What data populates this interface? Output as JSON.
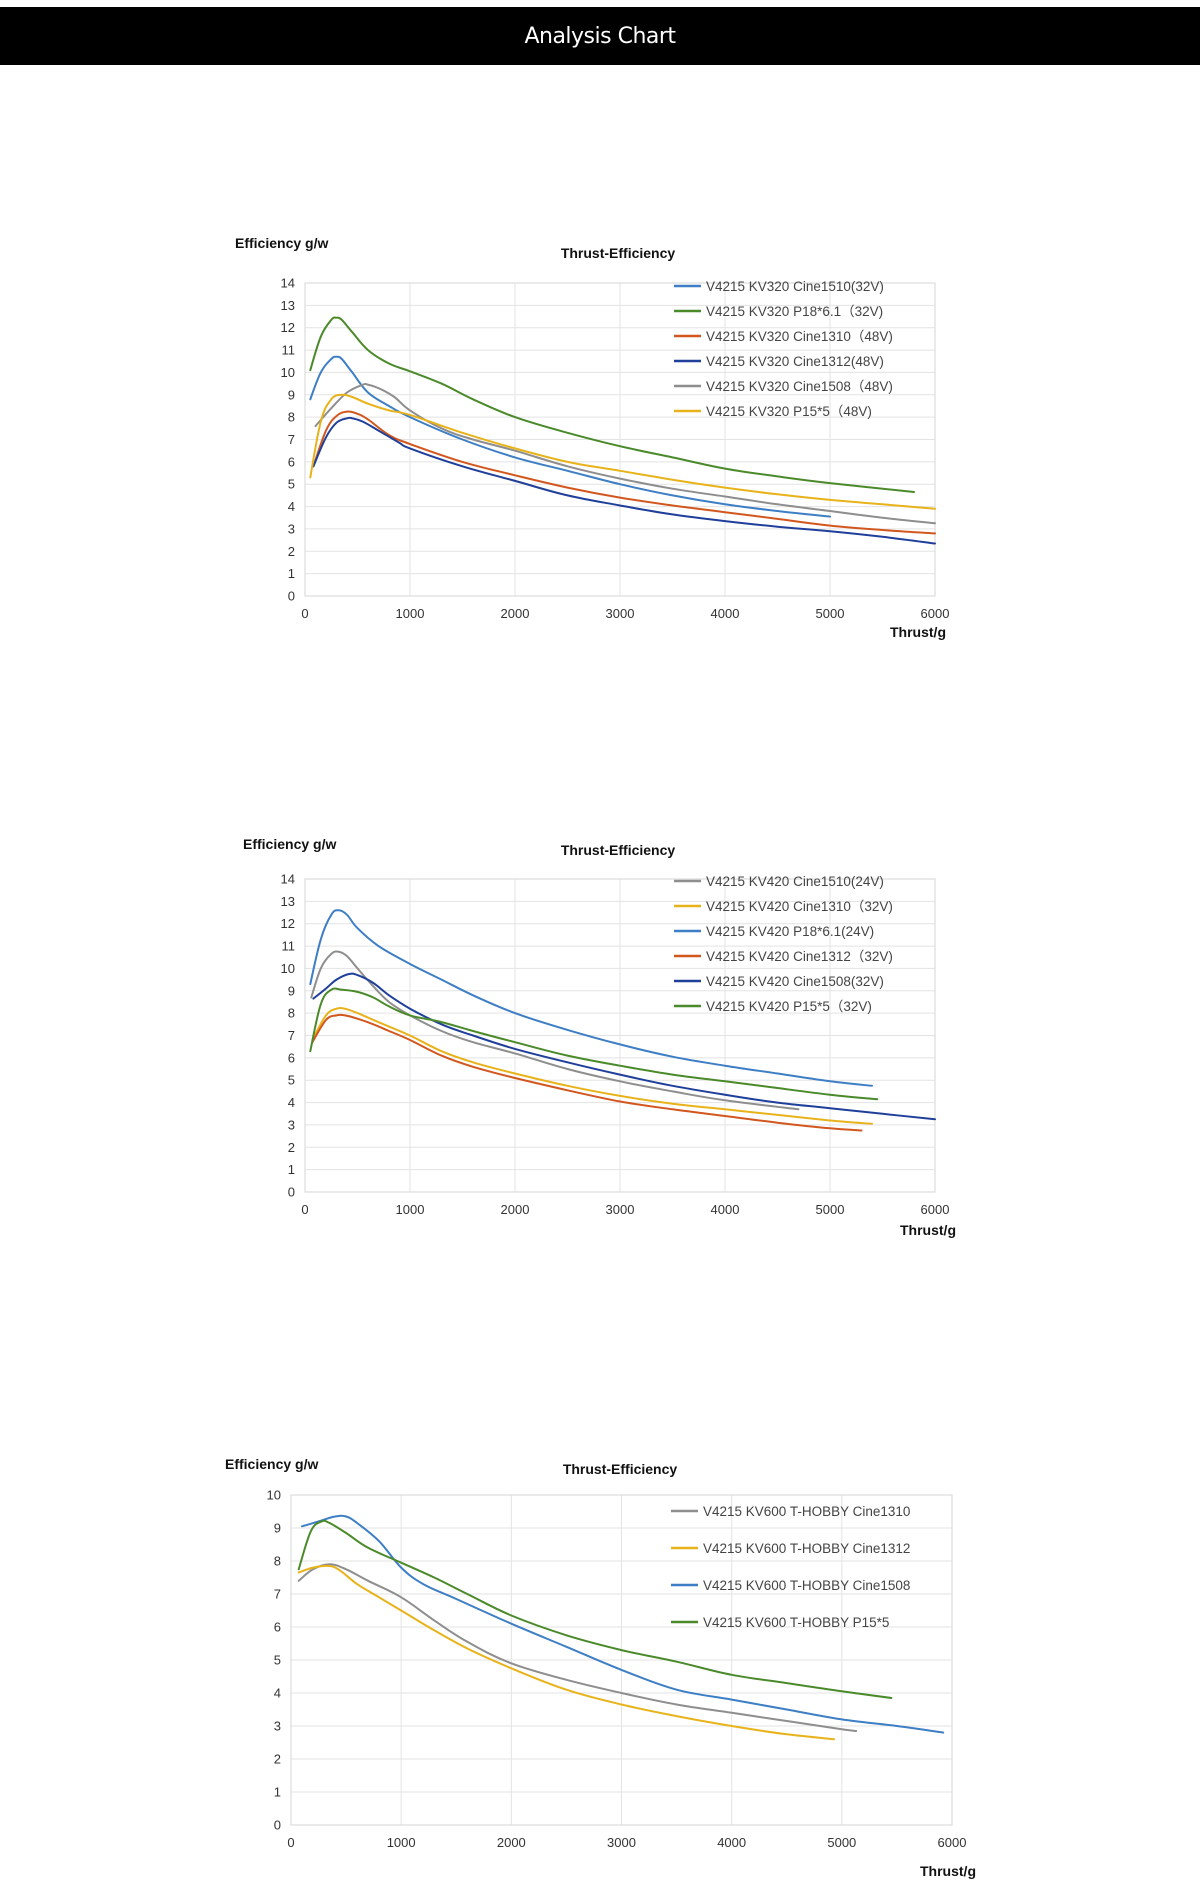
{
  "header": {
    "title": "Analysis Chart"
  },
  "colors": {
    "blue": "#3d7ec4",
    "green": "#4a8a2a",
    "orange": "#d2571e",
    "navy": "#1f3f9a",
    "gray": "#8e8e8e",
    "yellow": "#e8b31a"
  },
  "chart_data": [
    {
      "type": "line",
      "title": "Thrust-Efficiency",
      "xlabel": "Thrust/g",
      "ylabel": "Efficiency g/w",
      "xlim": [
        0,
        6000
      ],
      "ylim": [
        0,
        14
      ],
      "xticks": [
        "0",
        "1000",
        "2000",
        "3000",
        "4000",
        "5000",
        "6000"
      ],
      "yticks": [
        "0",
        "1",
        "2",
        "3",
        "4",
        "5",
        "6",
        "7",
        "8",
        "9",
        "10",
        "11",
        "12",
        "13",
        "14"
      ],
      "grid": true,
      "legend_position": "top-right",
      "series": [
        {
          "name": "V4215 KV320 Cine1510(32V)",
          "color_key": "blue",
          "x": [
            50,
            150,
            250,
            300,
            350,
            450,
            600,
            800,
            1000,
            1500,
            2000,
            2500,
            3000,
            3500,
            4000,
            4500,
            5000
          ],
          "y": [
            8.8,
            10.0,
            10.6,
            10.7,
            10.6,
            10.0,
            9.1,
            8.5,
            8.0,
            7.0,
            6.2,
            5.6,
            5.0,
            4.5,
            4.1,
            3.8,
            3.55
          ]
        },
        {
          "name": "V4215 KV320 P18*6.1（32V)",
          "color_key": "green",
          "x": [
            50,
            150,
            250,
            300,
            350,
            450,
            600,
            800,
            1000,
            1300,
            1600,
            2000,
            2500,
            3000,
            3500,
            4000,
            4500,
            5000,
            5800
          ],
          "y": [
            10.1,
            11.6,
            12.35,
            12.45,
            12.35,
            11.8,
            11.0,
            10.4,
            10.05,
            9.5,
            8.8,
            8.0,
            7.3,
            6.7,
            6.2,
            5.7,
            5.35,
            5.05,
            4.65
          ]
        },
        {
          "name": "V4215 KV320 Cine1310（48V)",
          "color_key": "orange",
          "x": [
            80,
            200,
            300,
            400,
            500,
            600,
            800,
            1000,
            1500,
            2000,
            2500,
            3000,
            3500,
            4000,
            4500,
            5000,
            5500,
            6000
          ],
          "y": [
            5.8,
            7.4,
            8.05,
            8.25,
            8.15,
            7.9,
            7.2,
            6.8,
            6.0,
            5.4,
            4.85,
            4.4,
            4.05,
            3.75,
            3.45,
            3.15,
            2.95,
            2.8
          ]
        },
        {
          "name": "V4215 KV320 Cine1312(48V)",
          "color_key": "navy",
          "x": [
            80,
            200,
            300,
            400,
            450,
            550,
            700,
            900,
            1000,
            1500,
            2000,
            2500,
            3000,
            3500,
            4000,
            4500,
            5000,
            5500,
            6000
          ],
          "y": [
            5.8,
            7.1,
            7.75,
            7.95,
            7.95,
            7.8,
            7.4,
            6.85,
            6.6,
            5.8,
            5.15,
            4.5,
            4.05,
            3.65,
            3.35,
            3.1,
            2.9,
            2.65,
            2.35
          ]
        },
        {
          "name": "V4215 KV320 Cine1508（48V)",
          "color_key": "gray",
          "x": [
            100,
            250,
            400,
            550,
            600,
            700,
            850,
            1000,
            1300,
            1600,
            2000,
            2500,
            3000,
            3500,
            4000,
            4500,
            5000,
            5500,
            6000
          ],
          "y": [
            7.6,
            8.4,
            9.1,
            9.45,
            9.45,
            9.3,
            8.9,
            8.3,
            7.5,
            7.0,
            6.5,
            5.8,
            5.25,
            4.8,
            4.45,
            4.1,
            3.8,
            3.5,
            3.25
          ]
        },
        {
          "name": "V4215 KV320 P15*5（48V)",
          "color_key": "yellow",
          "x": [
            50,
            150,
            250,
            350,
            450,
            600,
            800,
            1000,
            1500,
            2000,
            2500,
            3000,
            3500,
            4000,
            4500,
            5000,
            5500,
            6000
          ],
          "y": [
            5.3,
            7.8,
            8.8,
            9.0,
            8.9,
            8.6,
            8.3,
            8.1,
            7.3,
            6.6,
            6.0,
            5.6,
            5.2,
            4.85,
            4.55,
            4.3,
            4.1,
            3.9
          ]
        }
      ]
    },
    {
      "type": "line",
      "title": "Thrust-Efficiency",
      "xlabel": "Thrust/g",
      "ylabel": "Efficiency g/w",
      "xlim": [
        0,
        6000
      ],
      "ylim": [
        0,
        14
      ],
      "xticks": [
        "0",
        "1000",
        "2000",
        "3000",
        "4000",
        "5000",
        "6000"
      ],
      "yticks": [
        "0",
        "1",
        "2",
        "3",
        "4",
        "5",
        "6",
        "7",
        "8",
        "9",
        "10",
        "11",
        "12",
        "13",
        "14"
      ],
      "grid": true,
      "legend_position": "top-right",
      "series": [
        {
          "name": "V4215 KV420 Cine1510(24V)",
          "color_key": "gray",
          "x": [
            60,
            150,
            250,
            320,
            400,
            500,
            650,
            800,
            1000,
            1300,
            1600,
            2000,
            2500,
            3000,
            3500,
            4000,
            4700
          ],
          "y": [
            8.7,
            10.0,
            10.65,
            10.75,
            10.55,
            10.0,
            9.2,
            8.5,
            7.9,
            7.2,
            6.7,
            6.2,
            5.5,
            4.95,
            4.5,
            4.1,
            3.7
          ]
        },
        {
          "name": "V4215 KV420 Cine1310（32V)",
          "color_key": "yellow",
          "x": [
            70,
            200,
            300,
            380,
            500,
            650,
            800,
            1000,
            1300,
            1600,
            2000,
            2500,
            3000,
            3500,
            4000,
            4500,
            5000,
            5400
          ],
          "y": [
            6.8,
            7.9,
            8.2,
            8.2,
            8.0,
            7.7,
            7.4,
            7.0,
            6.3,
            5.8,
            5.3,
            4.75,
            4.3,
            3.95,
            3.7,
            3.45,
            3.2,
            3.05
          ]
        },
        {
          "name": "V4215 KV420 P18*6.1(24V)",
          "color_key": "blue",
          "x": [
            50,
            150,
            250,
            320,
            400,
            500,
            700,
            1000,
            1300,
            1600,
            2000,
            2500,
            3000,
            3500,
            4000,
            4500,
            5000,
            5400
          ],
          "y": [
            9.3,
            11.3,
            12.4,
            12.6,
            12.4,
            11.8,
            11.0,
            10.2,
            9.5,
            8.8,
            8.0,
            7.25,
            6.6,
            6.05,
            5.65,
            5.3,
            4.95,
            4.75
          ]
        },
        {
          "name": "V4215 KV420 Cine1312（32V)",
          "color_key": "orange",
          "x": [
            70,
            200,
            300,
            380,
            500,
            650,
            800,
            1000,
            1300,
            1600,
            2000,
            2500,
            3000,
            3500,
            4000,
            4500,
            5000,
            5300
          ],
          "y": [
            6.7,
            7.7,
            7.9,
            7.9,
            7.75,
            7.5,
            7.2,
            6.8,
            6.1,
            5.6,
            5.1,
            4.55,
            4.05,
            3.7,
            3.4,
            3.1,
            2.85,
            2.75
          ]
        },
        {
          "name": "V4215 KV420 Cine1508(32V)",
          "color_key": "navy",
          "x": [
            80,
            200,
            300,
            420,
            500,
            650,
            800,
            1000,
            1300,
            1600,
            2000,
            2500,
            3000,
            3500,
            4000,
            4500,
            5000,
            5500,
            6000
          ],
          "y": [
            8.65,
            9.1,
            9.5,
            9.75,
            9.7,
            9.35,
            8.8,
            8.2,
            7.5,
            7.0,
            6.4,
            5.8,
            5.25,
            4.75,
            4.35,
            4.0,
            3.75,
            3.5,
            3.25
          ]
        },
        {
          "name": "V4215 KV420 P15*5（32V)",
          "color_key": "green",
          "x": [
            50,
            150,
            250,
            350,
            500,
            650,
            800,
            1000,
            1300,
            1600,
            2000,
            2500,
            3000,
            3500,
            4000,
            4500,
            5000,
            5450
          ],
          "y": [
            6.3,
            8.4,
            9.05,
            9.05,
            8.95,
            8.7,
            8.3,
            7.9,
            7.6,
            7.2,
            6.7,
            6.1,
            5.65,
            5.25,
            4.95,
            4.65,
            4.35,
            4.15
          ]
        }
      ]
    },
    {
      "type": "line",
      "title": "Thrust-Efficiency",
      "xlabel": "Thrust/g",
      "ylabel": "Efficiency g/w",
      "xlim": [
        0,
        6000
      ],
      "ylim": [
        0,
        10
      ],
      "xticks": [
        "0",
        "1000",
        "2000",
        "3000",
        "4000",
        "5000",
        "6000"
      ],
      "yticks": [
        "0",
        "1",
        "2",
        "3",
        "4",
        "5",
        "6",
        "7",
        "8",
        "9",
        "10"
      ],
      "grid": true,
      "legend_position": "top-right",
      "series": [
        {
          "name": "V4215 KV600 T-HOBBY Cine1310",
          "color_key": "gray",
          "x": [
            70,
            200,
            350,
            500,
            700,
            1000,
            1300,
            1600,
            2000,
            2500,
            3000,
            3500,
            4000,
            4500,
            5000,
            5130
          ],
          "y": [
            7.4,
            7.75,
            7.9,
            7.75,
            7.4,
            6.9,
            6.2,
            5.55,
            4.9,
            4.4,
            4.0,
            3.65,
            3.4,
            3.15,
            2.9,
            2.85
          ]
        },
        {
          "name": "V4215 KV600 T-HOBBY Cine1312",
          "color_key": "yellow",
          "x": [
            70,
            200,
            350,
            450,
            600,
            800,
            1000,
            1300,
            1600,
            2000,
            2500,
            3000,
            3500,
            4000,
            4500,
            4930
          ],
          "y": [
            7.65,
            7.8,
            7.85,
            7.7,
            7.3,
            6.9,
            6.5,
            5.9,
            5.35,
            4.75,
            4.1,
            3.65,
            3.3,
            3.0,
            2.75,
            2.6
          ]
        },
        {
          "name": "V4215 KV600 T-HOBBY Cine1508",
          "color_key": "blue",
          "x": [
            100,
            250,
            400,
            500,
            600,
            800,
            1000,
            1200,
            1500,
            2000,
            2500,
            3000,
            3500,
            4000,
            4500,
            5000,
            5500,
            5920
          ],
          "y": [
            9.05,
            9.2,
            9.35,
            9.35,
            9.15,
            8.6,
            7.8,
            7.3,
            6.85,
            6.1,
            5.4,
            4.7,
            4.1,
            3.8,
            3.5,
            3.2,
            3.0,
            2.8
          ]
        },
        {
          "name": "V4215 KV600 T-HOBBY P15*5",
          "color_key": "green",
          "x": [
            70,
            180,
            280,
            350,
            500,
            700,
            1000,
            1300,
            1600,
            2000,
            2500,
            3000,
            3500,
            4000,
            4500,
            5000,
            5450
          ],
          "y": [
            7.75,
            8.9,
            9.2,
            9.15,
            8.85,
            8.4,
            7.95,
            7.5,
            7.0,
            6.35,
            5.75,
            5.3,
            4.95,
            4.55,
            4.3,
            4.05,
            3.85
          ]
        }
      ]
    }
  ]
}
